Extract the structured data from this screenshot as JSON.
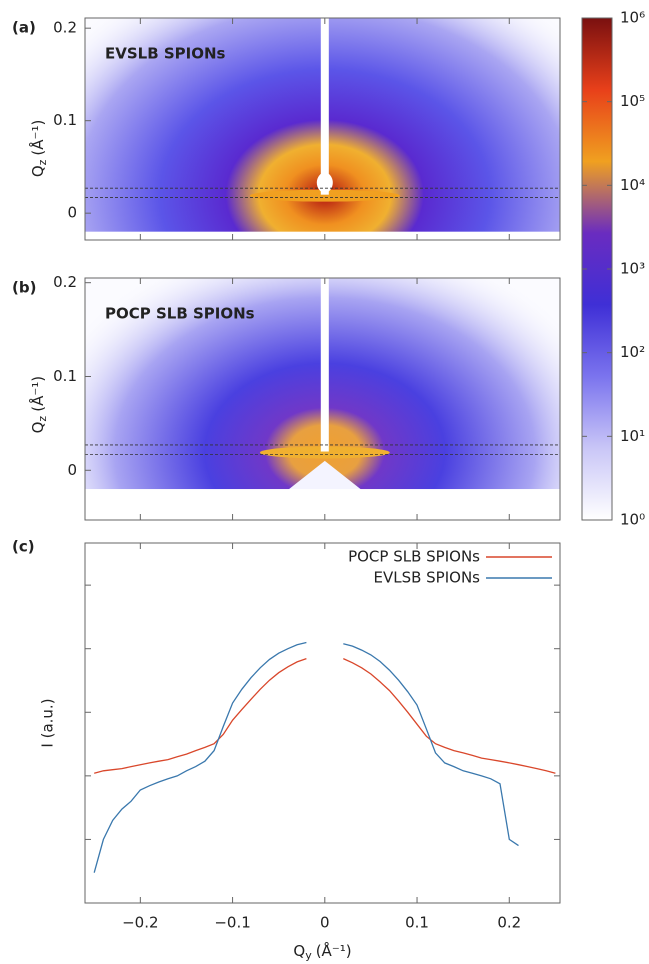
{
  "chart_data": [
    {
      "type": "heatmap",
      "panel_label": "(a)",
      "title": "EVSLB SPIONs",
      "ylabel_symbol": "Q",
      "ylabel_subscript": "z",
      "ylabel_unit": "(Å⁻¹)",
      "xlim": [
        -0.26,
        0.255
      ],
      "ylim": [
        -0.029,
        0.211
      ],
      "xticks": [
        -0.2,
        -0.1,
        0,
        0.1,
        0.2
      ],
      "yticks": [
        0,
        0.1,
        0.2
      ]
    },
    {
      "type": "heatmap",
      "panel_label": "(b)",
      "title": "POCP SLB SPIONs",
      "ylabel_symbol": "Q",
      "ylabel_subscript": "z",
      "ylabel_unit": "(Å⁻¹)",
      "xlim": [
        -0.26,
        0.255
      ],
      "ylim": [
        -0.053,
        0.205
      ],
      "xticks": [
        -0.2,
        -0.1,
        0,
        0.1,
        0.2
      ],
      "yticks": [
        0,
        0.1,
        0.2
      ]
    },
    {
      "type": "colorbar",
      "log_scale": true,
      "ylim": [
        1,
        1000000
      ],
      "yticks": [
        {
          "value": 1,
          "label": "10⁰"
        },
        {
          "value": 10,
          "label": "10¹"
        },
        {
          "value": 100,
          "label": "10²"
        },
        {
          "value": 1000,
          "label": "10³"
        },
        {
          "value": 10000,
          "label": "10⁴"
        },
        {
          "value": 100000,
          "label": "10⁵"
        },
        {
          "value": 1000000,
          "label": "10⁶"
        }
      ],
      "colormap": [
        "#ffffff",
        "#c9c6f7",
        "#7b74ee",
        "#3f2fd6",
        "#6a2cc0",
        "#f0a020",
        "#e8401a",
        "#7a1010"
      ]
    },
    {
      "type": "line",
      "panel_label": "(c)",
      "log_y": true,
      "xlabel_symbol": "Q",
      "xlabel_subscript": "y",
      "xlabel_unit": "(Å⁻¹)",
      "ylabel": "I (a.u.)",
      "xlim": [
        -0.26,
        0.255
      ],
      "ylim": [
        1,
        460000
      ],
      "xticks": [
        {
          "value": -0.2,
          "label": "−0.2"
        },
        {
          "value": -0.1,
          "label": "−0.1"
        },
        0,
        0.1,
        0.2
      ],
      "yticks": [
        10,
        100,
        1000,
        10000,
        100000
      ],
      "legend": "upper right",
      "x": [
        -0.25,
        -0.24,
        -0.23,
        -0.22,
        -0.21,
        -0.2,
        -0.19,
        -0.18,
        -0.17,
        -0.16,
        -0.15,
        -0.14,
        -0.13,
        -0.12,
        -0.11,
        -0.1,
        -0.09,
        -0.08,
        -0.07,
        -0.06,
        -0.05,
        -0.04,
        -0.03,
        -0.02,
        -0.01,
        0,
        0.01,
        0.02,
        0.03,
        0.04,
        0.05,
        0.06,
        0.07,
        0.08,
        0.09,
        0.1,
        0.11,
        0.12,
        0.13,
        0.14,
        0.15,
        0.16,
        0.17,
        0.18,
        0.19,
        0.2,
        0.21,
        0.22,
        0.23,
        0.24,
        0.25
      ],
      "series": [
        {
          "name": "POCP SLB SPIONs",
          "color": "#d9472b",
          "values": [
            110,
            120,
            125,
            130,
            140,
            150,
            160,
            170,
            180,
            200,
            220,
            250,
            280,
            320,
            450,
            750,
            1100,
            1600,
            2300,
            3200,
            4200,
            5200,
            6200,
            7000,
            null,
            null,
            null,
            7000,
            6000,
            5000,
            4000,
            3000,
            2200,
            1500,
            1000,
            650,
            420,
            320,
            280,
            250,
            230,
            210,
            190,
            180,
            170,
            160,
            150,
            140,
            130,
            120,
            110
          ]
        },
        {
          "name": "EVLSB SPIONs",
          "color": "#3a78ad",
          "values": [
            3,
            10,
            20,
            30,
            40,
            60,
            70,
            80,
            90,
            100,
            120,
            140,
            170,
            250,
            600,
            1400,
            2300,
            3500,
            5000,
            6800,
            8500,
            10000,
            11500,
            12500,
            null,
            null,
            null,
            12000,
            11000,
            9500,
            8000,
            6300,
            4600,
            3200,
            2100,
            1300,
            550,
            230,
            160,
            140,
            120,
            110,
            100,
            90,
            75,
            10,
            8,
            null,
            null,
            null,
            null
          ]
        }
      ]
    }
  ]
}
